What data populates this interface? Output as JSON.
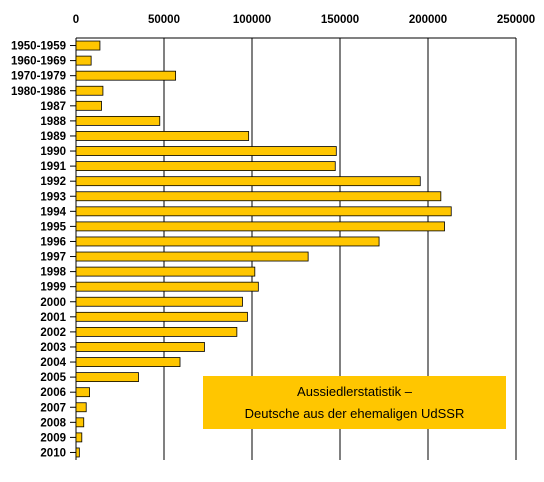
{
  "colors": {
    "bar_fill": "#ffc600",
    "bar_stroke": "#000000",
    "grid": "#000000"
  },
  "chart_data": {
    "type": "bar",
    "orientation": "horizontal",
    "title": "",
    "xlabel": "",
    "ylabel": "",
    "xlim": [
      0,
      250000
    ],
    "x_ticks": [
      0,
      50000,
      100000,
      150000,
      200000,
      250000
    ],
    "x_tick_labels": [
      "0",
      "50000",
      "100000",
      "150000",
      "200000",
      "250000"
    ],
    "x_axis_position": "top",
    "grid": true,
    "categories": [
      "1950-1959",
      "1960-1969",
      "1970-1979",
      "1980-1986",
      "1987",
      "1988",
      "1989",
      "1990",
      "1991",
      "1992",
      "1993",
      "1994",
      "1995",
      "1996",
      "1997",
      "1998",
      "1999",
      "2000",
      "2001",
      "2002",
      "2003",
      "2004",
      "2005",
      "2006",
      "2007",
      "2008",
      "2009",
      "2010"
    ],
    "values": [
      13600,
      8600,
      56600,
      15300,
      14500,
      47600,
      98100,
      147900,
      147300,
      195600,
      207300,
      213200,
      209400,
      172200,
      131900,
      101600,
      103600,
      94600,
      97400,
      91400,
      73000,
      59100,
      35500,
      7700,
      5800,
      4400,
      3300,
      1900
    ],
    "annotation": [
      "Aussiedlerstatistik –",
      "Deutsche aus der ehemaligen UdSSR"
    ]
  }
}
